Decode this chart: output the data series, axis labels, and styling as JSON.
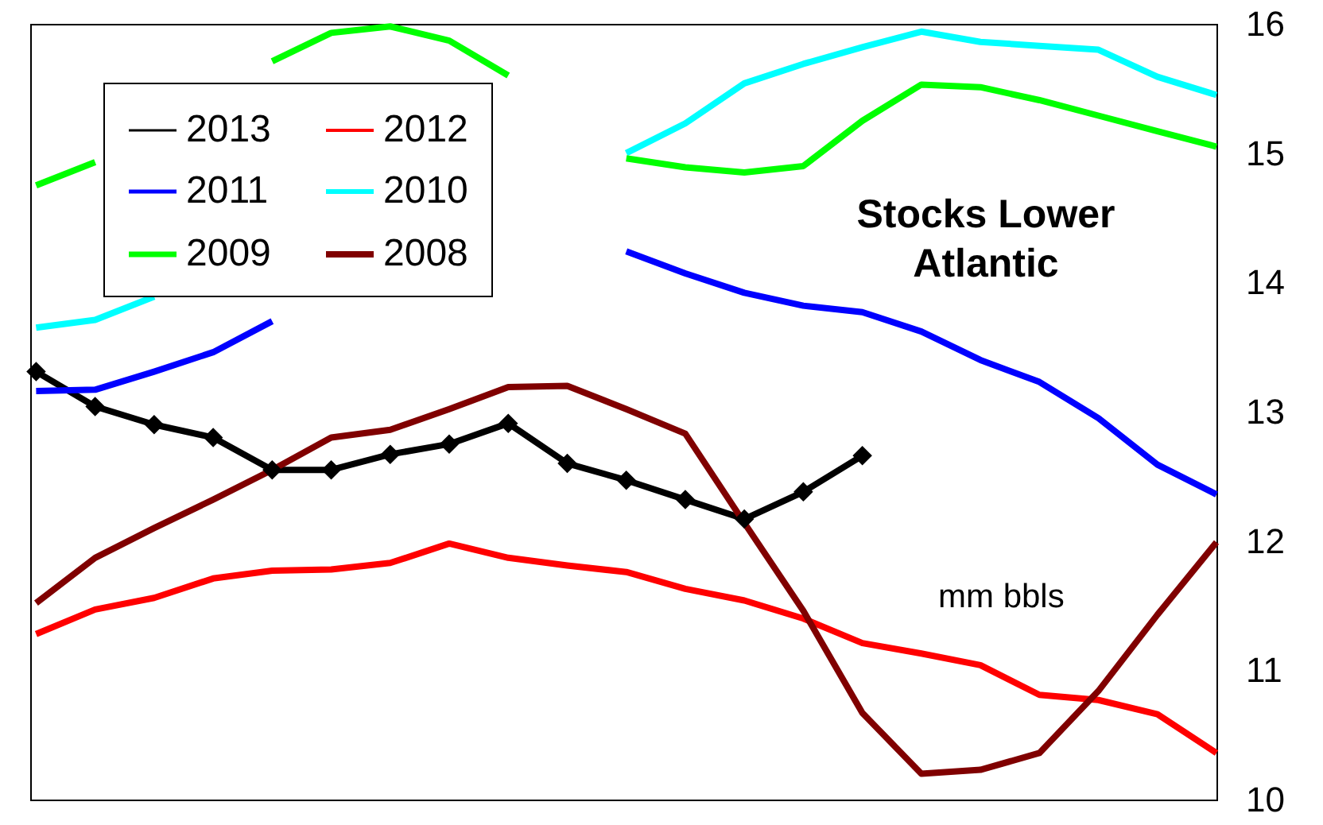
{
  "chart_data": {
    "type": "line",
    "title": "Stocks Lower Atlantic",
    "annotations": [
      "mm bbls"
    ],
    "categories": [
      null,
      null,
      null,
      null,
      null,
      null,
      null,
      null,
      null,
      null,
      null,
      null,
      null,
      null,
      null,
      null,
      null,
      null,
      null,
      null,
      null
    ],
    "ylim": [
      10,
      16
    ],
    "yticks": [
      10,
      11,
      12,
      13,
      14,
      15,
      16
    ],
    "grid": false,
    "legend": "top left",
    "series": [
      {
        "name": "2013",
        "color": "#000000",
        "marker": "diamond",
        "values": [
          13.31,
          13.04,
          12.9,
          12.8,
          12.55,
          12.55,
          12.67,
          12.75,
          12.91,
          12.6,
          12.47,
          12.32,
          12.17,
          12.38,
          12.66,
          null,
          null,
          null,
          null,
          null,
          null
        ]
      },
      {
        "name": "2012",
        "color": "#ff0000",
        "values": [
          11.28,
          11.47,
          11.56,
          11.71,
          11.77,
          11.78,
          11.83,
          11.98,
          11.87,
          11.81,
          11.76,
          11.63,
          11.54,
          11.4,
          11.21,
          11.13,
          11.04,
          10.81,
          10.77,
          10.66,
          10.36
        ]
      },
      {
        "name": "2011",
        "color": "#0000ff",
        "values": [
          13.16,
          13.17,
          13.31,
          13.46,
          13.7,
          null,
          null,
          null,
          null,
          null,
          14.24,
          14.07,
          13.92,
          13.82,
          13.77,
          13.62,
          13.4,
          13.23,
          12.95,
          12.59,
          12.36
        ]
      },
      {
        "name": "2010",
        "color": "#00ffff",
        "values": [
          13.65,
          13.71,
          13.89,
          null,
          null,
          null,
          null,
          null,
          null,
          null,
          15.0,
          15.23,
          15.54,
          15.69,
          15.82,
          15.94,
          15.86,
          15.83,
          15.8,
          15.59,
          15.45
        ]
      },
      {
        "name": "2009",
        "color": "#00ff00",
        "values": [
          14.75,
          14.93,
          null,
          null,
          15.71,
          15.93,
          15.98,
          15.87,
          15.6,
          null,
          14.96,
          14.89,
          14.85,
          14.9,
          15.25,
          15.53,
          15.51,
          15.41,
          15.29,
          15.17,
          15.05
        ]
      },
      {
        "name": "2008",
        "color": "#800000",
        "values": [
          11.52,
          11.87,
          12.1,
          12.32,
          12.55,
          12.8,
          12.86,
          13.02,
          13.19,
          13.2,
          13.02,
          12.83,
          12.14,
          11.46,
          10.67,
          10.2,
          10.23,
          10.36,
          10.84,
          11.43,
          11.99
        ]
      }
    ]
  }
}
